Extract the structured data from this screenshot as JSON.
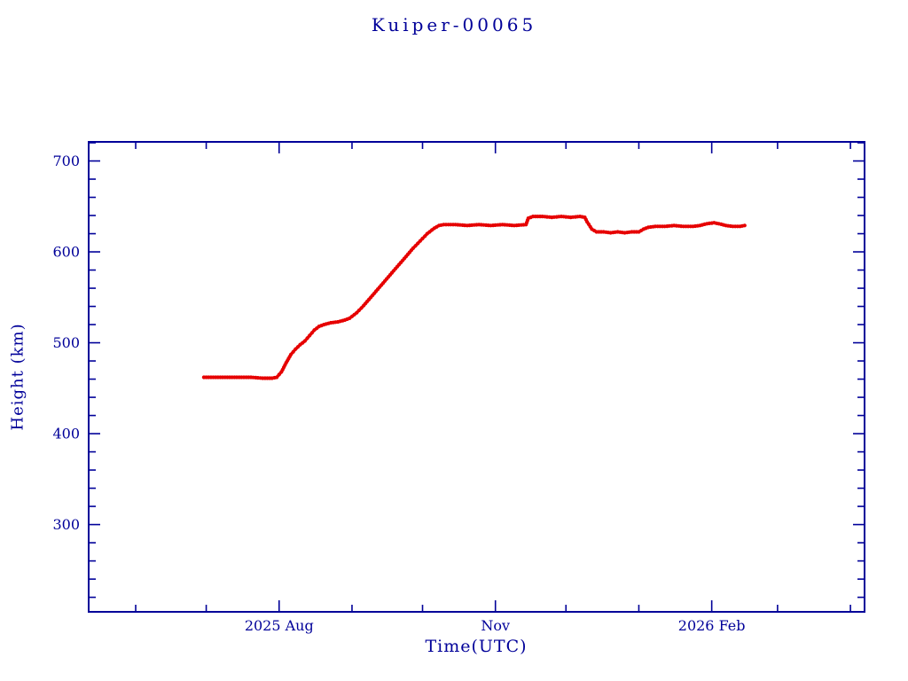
{
  "page": {
    "title": "Kuiper-00065"
  },
  "chart": {
    "title": "Kuiper-00065",
    "xlabel": "Time(UTC)",
    "ylabel": "Height (km)",
    "axis_color": "#000099",
    "data_color": "#e60000"
  },
  "chart_data": {
    "type": "scatter",
    "title": "Kuiper-00065",
    "xlabel": "Time(UTC)",
    "ylabel": "Height (km)",
    "x_unit_note": "days since 2025-06-01",
    "xlim": [
      -20,
      310
    ],
    "ylim": [
      204,
      721
    ],
    "grid": false,
    "legend": "none",
    "y_major_ticks": [
      300,
      400,
      500,
      600,
      700
    ],
    "y_minor_step": 20,
    "x_major_ticks": [
      {
        "t": 61,
        "label": "2025 Aug"
      },
      {
        "t": 153,
        "label": "Nov"
      },
      {
        "t": 245,
        "label": "2026 Feb"
      }
    ],
    "x_minor_ticks": [
      0,
      30,
      92,
      122,
      183,
      214,
      273,
      304
    ],
    "series": [
      {
        "name": "height_km",
        "color": "#e60000",
        "points": [
          [
            29,
            462
          ],
          [
            34,
            462
          ],
          [
            39,
            462
          ],
          [
            44,
            462
          ],
          [
            49,
            462
          ],
          [
            54,
            461
          ],
          [
            58,
            461
          ],
          [
            60,
            462
          ],
          [
            62,
            468
          ],
          [
            64,
            478
          ],
          [
            66,
            487
          ],
          [
            68,
            493
          ],
          [
            70,
            498
          ],
          [
            72,
            502
          ],
          [
            74,
            508
          ],
          [
            76,
            514
          ],
          [
            78,
            518
          ],
          [
            80,
            520
          ],
          [
            83,
            522
          ],
          [
            86,
            523
          ],
          [
            89,
            525
          ],
          [
            91,
            527
          ],
          [
            94,
            533
          ],
          [
            97,
            541
          ],
          [
            100,
            550
          ],
          [
            103,
            559
          ],
          [
            106,
            568
          ],
          [
            109,
            577
          ],
          [
            112,
            586
          ],
          [
            115,
            595
          ],
          [
            118,
            604
          ],
          [
            121,
            612
          ],
          [
            124,
            620
          ],
          [
            127,
            626
          ],
          [
            129,
            629
          ],
          [
            131,
            630
          ],
          [
            136,
            630
          ],
          [
            141,
            629
          ],
          [
            146,
            630
          ],
          [
            151,
            629
          ],
          [
            156,
            630
          ],
          [
            161,
            629
          ],
          [
            166,
            630
          ],
          [
            167,
            637
          ],
          [
            169,
            639
          ],
          [
            173,
            639
          ],
          [
            177,
            638
          ],
          [
            181,
            639
          ],
          [
            185,
            638
          ],
          [
            189,
            639
          ],
          [
            191,
            638
          ],
          [
            192,
            633
          ],
          [
            194,
            625
          ],
          [
            196,
            622
          ],
          [
            199,
            622
          ],
          [
            202,
            621
          ],
          [
            205,
            622
          ],
          [
            208,
            621
          ],
          [
            211,
            622
          ],
          [
            214,
            622
          ],
          [
            216,
            625
          ],
          [
            218,
            627
          ],
          [
            221,
            628
          ],
          [
            225,
            628
          ],
          [
            229,
            629
          ],
          [
            233,
            628
          ],
          [
            237,
            628
          ],
          [
            240,
            629
          ],
          [
            243,
            631
          ],
          [
            246,
            632
          ],
          [
            248,
            631
          ],
          [
            251,
            629
          ],
          [
            254,
            628
          ],
          [
            257,
            628
          ],
          [
            259,
            629
          ]
        ]
      }
    ]
  }
}
